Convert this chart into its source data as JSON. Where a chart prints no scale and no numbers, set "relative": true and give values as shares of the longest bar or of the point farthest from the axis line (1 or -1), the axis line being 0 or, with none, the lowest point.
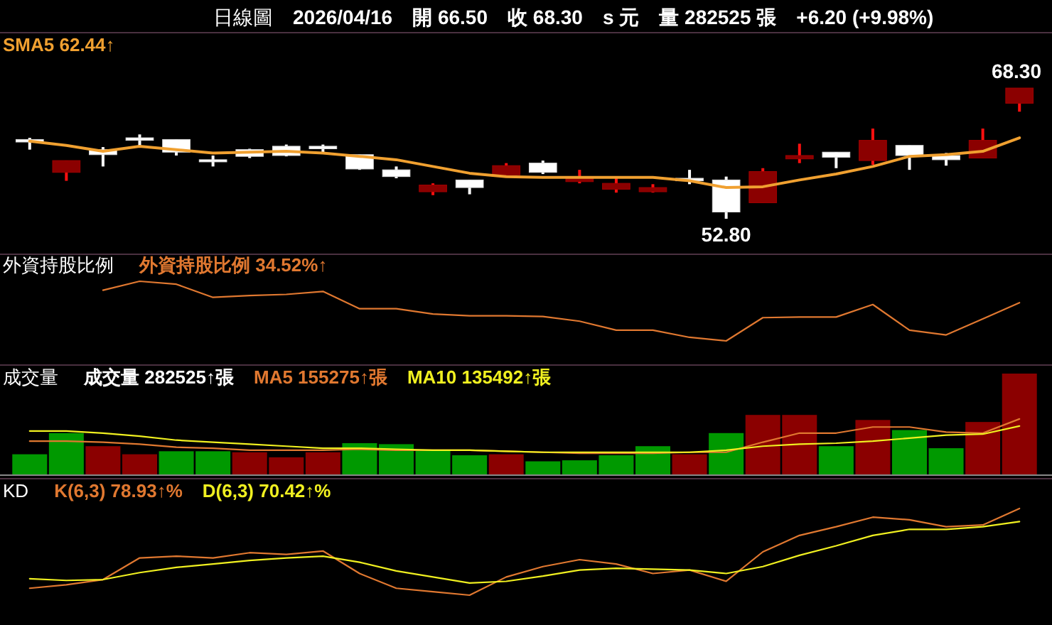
{
  "chart_data": [
    {
      "type": "candlestick",
      "title": "日線圖",
      "subtitle": "2026/04/16",
      "relative": false,
      "legend": "top left",
      "annotations": [
        "開 66.50",
        "收 68.30",
        "s 元",
        "量 282525 張",
        "+6.20 (+9.98%)",
        {
          "text": "68.30",
          "y": 68.3
        },
        {
          "text": "52.80",
          "y": 52.8
        }
      ],
      "categories": [
        null,
        null,
        null,
        null,
        null,
        null,
        null,
        null,
        null,
        null,
        null,
        null,
        null,
        null,
        null,
        null,
        null,
        null,
        null,
        null,
        null,
        null,
        null,
        null,
        null,
        null,
        null,
        null
      ],
      "ohlc": [
        [
          62.2,
          62.4,
          61.0,
          61.9
        ],
        [
          58.3,
          59.7,
          57.3,
          59.7
        ],
        [
          61.0,
          61.3,
          59.0,
          60.4
        ],
        [
          62.4,
          62.8,
          61.3,
          62.1
        ],
        [
          62.2,
          62.2,
          60.3,
          60.7
        ],
        [
          59.8,
          60.3,
          59.0,
          59.6
        ],
        [
          61.0,
          61.1,
          60.0,
          60.2
        ],
        [
          61.4,
          61.6,
          60.2,
          60.3
        ],
        [
          61.4,
          61.6,
          60.6,
          61.1
        ],
        [
          60.4,
          60.4,
          58.6,
          58.7
        ],
        [
          58.6,
          59.0,
          57.6,
          57.8
        ],
        [
          56.0,
          57.0,
          55.6,
          56.8
        ],
        [
          57.4,
          57.4,
          55.7,
          56.5
        ],
        [
          58.0,
          59.4,
          58.0,
          59.1
        ],
        [
          59.4,
          59.7,
          58.1,
          58.3
        ],
        [
          57.2,
          58.6,
          57.0,
          57.8
        ],
        [
          56.3,
          57.6,
          55.9,
          57.0
        ],
        [
          56.0,
          56.9,
          55.9,
          56.5
        ],
        [
          57.6,
          58.6,
          56.9,
          57.3
        ],
        [
          57.4,
          57.8,
          52.8,
          53.6
        ],
        [
          54.7,
          58.8,
          54.7,
          58.4
        ],
        [
          59.9,
          61.7,
          59.4,
          60.3
        ],
        [
          60.7,
          60.7,
          58.8,
          60.1
        ],
        [
          59.7,
          63.5,
          59.2,
          62.1
        ],
        [
          61.5,
          61.5,
          58.6,
          60.3
        ],
        [
          60.3,
          60.6,
          59.1,
          59.8
        ],
        [
          60.0,
          63.5,
          60.0,
          62.1
        ],
        [
          66.5,
          68.3,
          65.5,
          68.3
        ]
      ],
      "colors": [
        "#ffffff",
        "#8b0000",
        "#ffffff",
        "#ffffff",
        "#ffffff",
        "#ffffff",
        "#ffffff",
        "#ffffff",
        "#ffffff",
        "#ffffff",
        "#ffffff",
        "#8b0000",
        "#ffffff",
        "#8b0000",
        "#ffffff",
        "#8b0000",
        "#8b0000",
        "#8b0000",
        "#ffffff",
        "#ffffff",
        "#8b0000",
        "#8b0000",
        "#ffffff",
        "#8b0000",
        "#ffffff",
        "#ffffff",
        "#8b0000",
        "#8b0000"
      ],
      "series": [
        {
          "type": "line",
          "name": "SMA5 62.44↑",
          "color": "#f0a030",
          "values": [
            62.0,
            61.5,
            60.8,
            61.4,
            61.0,
            60.6,
            60.7,
            60.8,
            60.6,
            60.2,
            59.8,
            59.0,
            58.2,
            57.8,
            57.7,
            57.7,
            57.7,
            57.7,
            57.3,
            56.5,
            56.6,
            57.4,
            58.1,
            59.0,
            60.2,
            60.4,
            60.8,
            62.4
          ]
        }
      ]
    },
    {
      "type": "line",
      "title": "外資持股比例",
      "relative": true,
      "legend": "top left",
      "categories": [
        null,
        null,
        null,
        null,
        null,
        null,
        null,
        null,
        null,
        null,
        null,
        null,
        null,
        null,
        null,
        null,
        null,
        null,
        null,
        null,
        null,
        null,
        null,
        null,
        null,
        null,
        null,
        null
      ],
      "series": [
        {
          "name": "外資持股比例 34.52%↑",
          "color": "#e07830",
          "values": [
            null,
            null,
            0.85,
            1.0,
            0.95,
            0.73,
            0.76,
            0.78,
            0.83,
            0.54,
            0.54,
            0.45,
            0.42,
            0.42,
            0.41,
            0.33,
            0.18,
            0.18,
            0.06,
            0,
            0.39,
            0.4,
            0.4,
            0.61,
            0.18,
            0.1,
            0.37,
            0.64
          ]
        }
      ]
    },
    {
      "type": "bar",
      "title": "成交量",
      "relative": true,
      "legend": "top left",
      "categories": [
        null,
        null,
        null,
        null,
        null,
        null,
        null,
        null,
        null,
        null,
        null,
        null,
        null,
        null,
        null,
        null,
        null,
        null,
        null,
        null,
        null,
        null,
        null,
        null,
        null,
        null,
        null,
        null
      ],
      "series": [
        {
          "type": "bar",
          "name": "成交量 282525↑張",
          "colors": [
            "#009900",
            "#009900",
            "#8b0000",
            "#8b0000",
            "#009900",
            "#009900",
            "#8b0000",
            "#8b0000",
            "#8b0000",
            "#009900",
            "#009900",
            "#009900",
            "#009900",
            "#8b0000",
            "#009900",
            "#009900",
            "#009900",
            "#009900",
            "#8b0000",
            "#009900",
            "#8b0000",
            "#8b0000",
            "#009900",
            "#8b0000",
            "#009900",
            "#009900",
            "#8b0000",
            "#8b0000"
          ],
          "values": [
            0.2,
            0.41,
            0.28,
            0.2,
            0.23,
            0.23,
            0.22,
            0.17,
            0.22,
            0.31,
            0.3,
            0.24,
            0.19,
            0.2,
            0.13,
            0.14,
            0.19,
            0.28,
            0.2,
            0.41,
            0.59,
            0.59,
            0.28,
            0.54,
            0.44,
            0.26,
            0.52,
            1
          ]
        },
        {
          "type": "line",
          "name": "MA5 155275↑張",
          "color": "#e07830",
          "values": [
            0.33,
            0.33,
            0.32,
            0.3,
            0.27,
            0.26,
            0.24,
            0.24,
            0.24,
            0.25,
            0.24,
            0.24,
            0.24,
            0.23,
            0.22,
            0.21,
            0.21,
            0.21,
            0.22,
            0.22,
            0.32,
            0.41,
            0.41,
            0.47,
            0.47,
            0.42,
            0.41,
            0.55
          ]
        },
        {
          "type": "line",
          "name": "MA10 135492↑張",
          "color": "#f0f020",
          "values": [
            0.43,
            0.43,
            0.41,
            0.38,
            0.34,
            0.32,
            0.3,
            0.28,
            0.26,
            0.26,
            0.25,
            0.24,
            0.24,
            0.23,
            0.22,
            0.22,
            0.22,
            0.22,
            0.22,
            0.24,
            0.28,
            0.3,
            0.31,
            0.33,
            0.36,
            0.39,
            0.4,
            0.48
          ]
        }
      ]
    },
    {
      "type": "line",
      "title": "KD",
      "relative": true,
      "legend": "top left",
      "categories": [
        null,
        null,
        null,
        null,
        null,
        null,
        null,
        null,
        null,
        null,
        null,
        null,
        null,
        null,
        null,
        null,
        null,
        null,
        null,
        null,
        null,
        null,
        null,
        null,
        null,
        null,
        null,
        null
      ],
      "series": [
        {
          "name": "K(6,3) 78.93↑%",
          "color": "#e07830",
          "values": [
            0.08,
            0.12,
            0.18,
            0.43,
            0.45,
            0.43,
            0.49,
            0.47,
            0.51,
            0.25,
            0.08,
            0.04,
            0,
            0.21,
            0.33,
            0.41,
            0.36,
            0.25,
            0.29,
            0.16,
            0.5,
            0.69,
            0.79,
            0.9,
            0.87,
            0.79,
            0.81,
            1
          ]
        },
        {
          "name": "D(6,3) 70.42↑%",
          "color": "#f0f020",
          "values": [
            0.19,
            0.17,
            0.18,
            0.26,
            0.32,
            0.36,
            0.4,
            0.43,
            0.45,
            0.38,
            0.28,
            0.21,
            0.14,
            0.16,
            0.22,
            0.29,
            0.31,
            0.3,
            0.29,
            0.25,
            0.33,
            0.46,
            0.57,
            0.69,
            0.76,
            0.76,
            0.79,
            0.85
          ]
        }
      ]
    }
  ]
}
